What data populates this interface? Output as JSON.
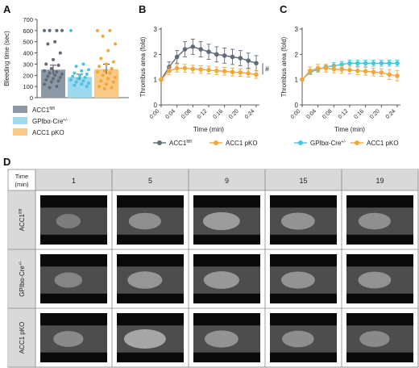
{
  "colors": {
    "grey": "#5f6b78",
    "light_blue": "#4cc3e4",
    "orange": "#f2a73a",
    "bar_grey": "#8d98a6",
    "bar_blue": "#9fd9ef",
    "bar_orange": "#f8ca86"
  },
  "panels": {
    "A": "A",
    "B": "B",
    "C": "C",
    "D": "D"
  },
  "chart_data": [
    {
      "id": "A",
      "type": "bar",
      "ylabel": "Bleeding time (sec)",
      "ylim": [
        0,
        700
      ],
      "yticks": [
        0,
        100,
        200,
        300,
        400,
        500,
        600,
        700
      ],
      "categories": [
        "ACC1fl/fl",
        "GPIbα-Cre+/-",
        "ACC1 pKO"
      ],
      "values": [
        250,
        185,
        255
      ],
      "errors": [
        40,
        25,
        45
      ],
      "points": [
        [
          600,
          600,
          600,
          600,
          500,
          480,
          400,
          340,
          300,
          290,
          260,
          240,
          230,
          220,
          210,
          200,
          190,
          180,
          170,
          160,
          150,
          140,
          120,
          100,
          90
        ],
        [
          600,
          300,
          280,
          250,
          240,
          220,
          210,
          200,
          190,
          180,
          170,
          160,
          150,
          140,
          130,
          120,
          110,
          100
        ],
        [
          600,
          600,
          550,
          480,
          420,
          350,
          320,
          300,
          280,
          260,
          240,
          230,
          220,
          200,
          180,
          170,
          150,
          140,
          120,
          100,
          90,
          80
        ]
      ],
      "legend": [
        {
          "base": "ACC1",
          "sup": "fl/fl"
        },
        {
          "base": "GPIbα-Cre",
          "sup": "+/-"
        },
        {
          "base": "ACC1 pKO",
          "sup": ""
        }
      ]
    },
    {
      "id": "B",
      "type": "line",
      "xlabel": "Time (min)",
      "ylabel": "Thrombus area (fold)",
      "ylim": [
        0,
        3
      ],
      "yticks": [
        "0",
        "1",
        "2",
        "3"
      ],
      "xtick_labels": [
        "0:00",
        "0:04",
        "0:08",
        "0:12",
        "0:16",
        "0:20",
        "0:24"
      ],
      "annotation": "#",
      "series": [
        {
          "name_base": "ACC1",
          "name_sup": "fl/fl",
          "x": [
            0,
            2,
            4,
            6,
            8,
            10,
            12,
            14,
            16,
            18,
            20,
            22,
            24
          ],
          "values": [
            1.0,
            1.5,
            1.9,
            2.2,
            2.3,
            2.2,
            2.1,
            2.0,
            1.95,
            1.9,
            1.85,
            1.75,
            1.65
          ],
          "errors": [
            0,
            0.2,
            0.25,
            0.3,
            0.3,
            0.3,
            0.3,
            0.3,
            0.3,
            0.3,
            0.3,
            0.3,
            0.3
          ]
        },
        {
          "name_base": "ACC1 pKO",
          "name_sup": "",
          "x": [
            0,
            2,
            4,
            6,
            8,
            10,
            12,
            14,
            16,
            18,
            20,
            22,
            24
          ],
          "values": [
            1.0,
            1.35,
            1.45,
            1.45,
            1.42,
            1.4,
            1.38,
            1.35,
            1.33,
            1.3,
            1.28,
            1.25,
            1.2
          ],
          "errors": [
            0,
            0.15,
            0.15,
            0.15,
            0.15,
            0.15,
            0.15,
            0.15,
            0.15,
            0.15,
            0.15,
            0.15,
            0.15
          ]
        }
      ]
    },
    {
      "id": "C",
      "type": "line",
      "xlabel": "Time (min)",
      "ylabel": "Thrombus area (fold)",
      "ylim": [
        0,
        3
      ],
      "yticks": [
        "0",
        "1",
        "2",
        "3"
      ],
      "xtick_labels": [
        "0:00",
        "0:04",
        "0:08",
        "0:12",
        "0:16",
        "0:20",
        "0:24"
      ],
      "series": [
        {
          "name_base": "GPIbα-Cre",
          "name_sup": "+/-",
          "x": [
            0,
            2,
            4,
            6,
            8,
            10,
            12,
            14,
            16,
            18,
            20,
            22,
            24
          ],
          "values": [
            1.0,
            1.3,
            1.4,
            1.5,
            1.55,
            1.6,
            1.65,
            1.65,
            1.65,
            1.65,
            1.65,
            1.65,
            1.65
          ],
          "errors": [
            0,
            0.1,
            0.1,
            0.1,
            0.12,
            0.12,
            0.12,
            0.12,
            0.12,
            0.12,
            0.12,
            0.12,
            0.12
          ]
        },
        {
          "name_base": "ACC1 pKO",
          "name_sup": "",
          "x": [
            0,
            2,
            4,
            6,
            8,
            10,
            12,
            14,
            16,
            18,
            20,
            22,
            24
          ],
          "values": [
            1.0,
            1.35,
            1.45,
            1.45,
            1.42,
            1.4,
            1.38,
            1.35,
            1.33,
            1.3,
            1.28,
            1.2,
            1.15
          ],
          "errors": [
            0,
            0.15,
            0.15,
            0.15,
            0.15,
            0.15,
            0.15,
            0.15,
            0.15,
            0.15,
            0.15,
            0.2,
            0.2
          ]
        }
      ]
    },
    {
      "id": "D",
      "type": "table",
      "corner_line1": "Time",
      "corner_line2": "(min)",
      "columns": [
        "1",
        "5",
        "9",
        "15",
        "19"
      ],
      "rows": [
        {
          "base": "ACC1",
          "sup": "fl/fl"
        },
        {
          "base": "GPIbα-Cre",
          "sup": "+/-"
        },
        {
          "base": "ACC1 pKO",
          "sup": ""
        }
      ]
    }
  ]
}
